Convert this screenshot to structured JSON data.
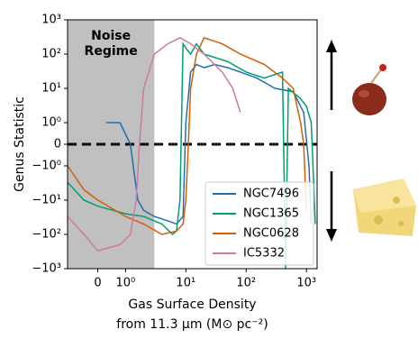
{
  "chart_data": {
    "type": "line",
    "y_label": "Genus Statistic",
    "x_label": [
      "Gas Surface Density",
      "from 11.3 μm (M⊙ pc⁻²)"
    ],
    "xscale": "symlog",
    "yscale": "symlog",
    "xlim": [
      -1.1,
      1500
    ],
    "ylim": [
      -1000,
      1000
    ],
    "xticks": [
      0,
      {
        "value": 1,
        "label": "10⁰"
      },
      {
        "value": 10,
        "label": "10¹"
      },
      {
        "value": 100,
        "label": "10²"
      },
      {
        "value": 1000,
        "label": "10³"
      }
    ],
    "yticks": [
      {
        "value": -1000,
        "label": "−10³"
      },
      {
        "value": -100,
        "label": "−10²"
      },
      {
        "value": -10,
        "label": "−10¹"
      },
      {
        "value": -1,
        "label": "−10⁰"
      },
      0,
      {
        "value": 1,
        "label": "10⁰"
      },
      {
        "value": 10,
        "label": "10¹"
      },
      {
        "value": 100,
        "label": "10²"
      },
      {
        "value": 1000,
        "label": "10³"
      }
    ],
    "zero_line": true,
    "shaded_region": {
      "label": [
        "Noise",
        "Regime"
      ],
      "xlim": [
        -1.1,
        3
      ],
      "color": "#c0c0c0"
    },
    "legend": "lower right",
    "series": [
      {
        "name": "NGC7496",
        "color": "#1f6fb0",
        "x": [
          0.3,
          0.8,
          1.2,
          1.6,
          2,
          3,
          5,
          7,
          9,
          10,
          12,
          15,
          20,
          30,
          50,
          80,
          150,
          300,
          600,
          900,
          1100,
          1200
        ],
        "values": [
          1,
          1,
          0,
          -10,
          -20,
          -30,
          -40,
          -50,
          -30,
          1,
          30,
          50,
          40,
          50,
          40,
          30,
          20,
          10,
          8,
          2,
          -1,
          -50
        ]
      },
      {
        "name": "NGC1365",
        "color": "#009e73",
        "x": [
          -1.1,
          -0.5,
          0,
          1,
          2,
          4,
          6,
          7,
          8,
          9,
          10,
          12,
          15,
          20,
          50,
          100,
          200,
          400,
          450,
          500,
          800,
          1000,
          1200,
          1400
        ],
        "values": [
          -3,
          -10,
          -15,
          -25,
          -30,
          -50,
          -100,
          -80,
          -10,
          200,
          150,
          100,
          200,
          100,
          60,
          30,
          20,
          30,
          -1000,
          10,
          5,
          3,
          1,
          -50
        ]
      },
      {
        "name": "NGC0628",
        "color": "#d55e00",
        "x": [
          -1.1,
          -0.5,
          0,
          1,
          2,
          4,
          7,
          9,
          10,
          11,
          12,
          15,
          20,
          40,
          80,
          200,
          400,
          600,
          800,
          900,
          1000
        ],
        "values": [
          -1,
          -5,
          -10,
          -30,
          -50,
          -100,
          -80,
          -50,
          -10,
          0,
          10,
          100,
          300,
          200,
          100,
          50,
          20,
          10,
          1,
          0,
          -20
        ]
      },
      {
        "name": "IC5332",
        "color": "#cc79a7",
        "x": [
          -1.1,
          -0.5,
          0,
          0.8,
          1.2,
          1.5,
          1.7,
          2,
          3,
          5,
          8,
          12,
          20,
          40,
          60,
          80
        ],
        "values": [
          -30,
          -100,
          -300,
          -200,
          -100,
          -10,
          0,
          10,
          100,
          200,
          300,
          200,
          100,
          30,
          10,
          2
        ]
      }
    ]
  }
}
